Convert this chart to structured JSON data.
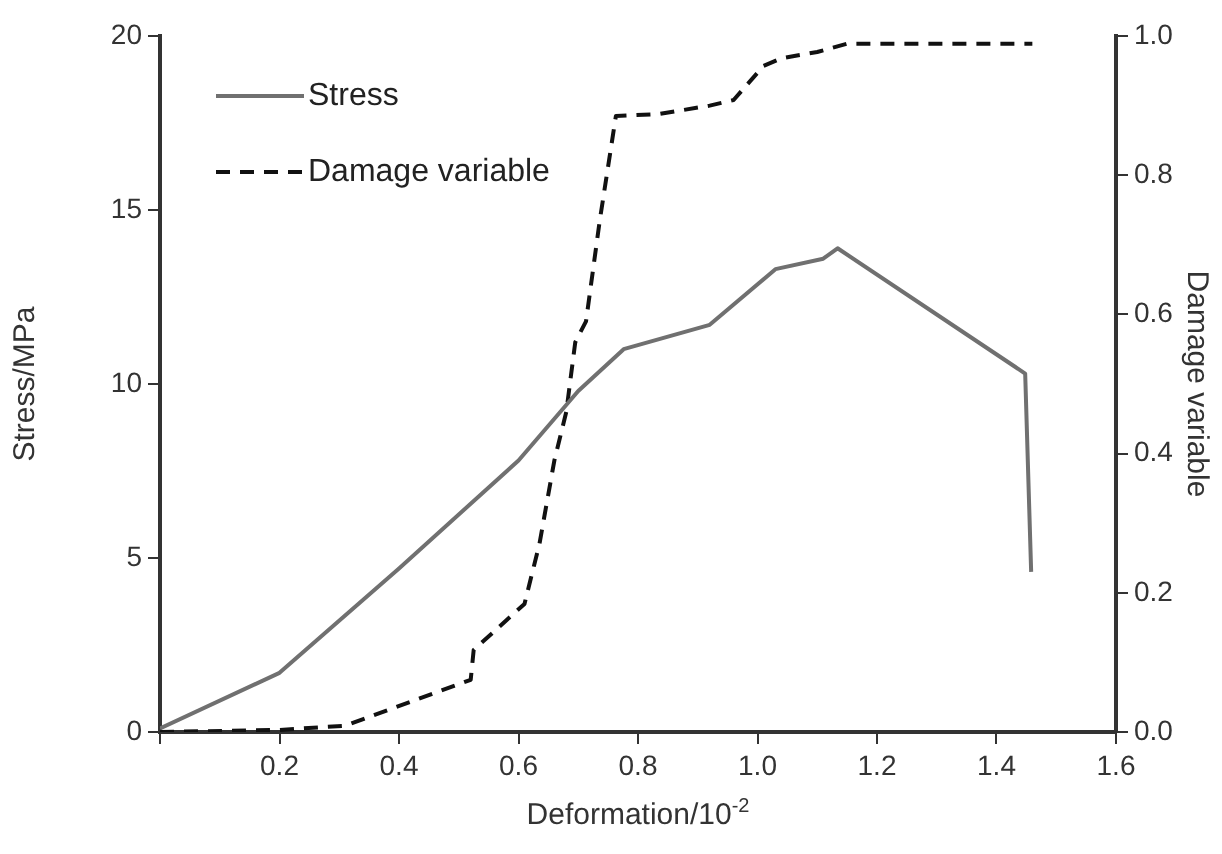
{
  "chart_data": {
    "type": "line",
    "xlabel": "Deformation/10$^{-2}$",
    "ylabel": "Stress/MPa",
    "y2label": "Damage variable",
    "xlim": [
      0,
      1.6
    ],
    "xticks": [
      {
        "value": 0,
        "label": null
      },
      0.2,
      0.4,
      0.6,
      0.8,
      {
        "value": 1.0,
        "label": "1.0"
      },
      1.2,
      1.4,
      1.6
    ],
    "ylim": [
      0,
      20
    ],
    "yticks": [
      0,
      5,
      10,
      15,
      20
    ],
    "y2lim": [
      0,
      1
    ],
    "y2ticks": [
      {
        "value": 0,
        "label": "0.0"
      },
      0.2,
      0.4,
      0.6,
      0.8,
      {
        "value": 1,
        "label": "1.0"
      }
    ],
    "grid": false,
    "legend": "top left",
    "marker": "none",
    "series": [
      {
        "name": "Stress",
        "color": "#707070",
        "line_style": "solid",
        "x": [
          0,
          0.2,
          0.4,
          0.6,
          0.7,
          0.776,
          0.92,
          1.03,
          1.11,
          1.134,
          1.448,
          1.458
        ],
        "values": [
          0.1,
          1.7,
          4.7,
          7.8,
          9.8,
          11.0,
          11.7,
          13.3,
          13.6,
          13.9,
          10.3,
          4.6
        ]
      },
      {
        "name": "Damage variable",
        "color": "#111111",
        "line_style": "dashed",
        "axis": "y2",
        "x": [
          0,
          0.2,
          0.31,
          0.52,
          0.525,
          0.61,
          0.635,
          0.66,
          0.68,
          0.695,
          0.713,
          0.736,
          0.763,
          0.836,
          0.92,
          0.96,
          1.01,
          1.04,
          1.1,
          1.15,
          1.46
        ],
        "values": [
          0,
          0.003,
          0.009,
          0.075,
          0.118,
          0.184,
          0.27,
          0.39,
          0.46,
          0.56,
          0.59,
          0.735,
          0.885,
          0.888,
          0.9,
          0.908,
          0.957,
          0.968,
          0.977,
          0.989,
          0.989
        ]
      }
    ]
  }
}
